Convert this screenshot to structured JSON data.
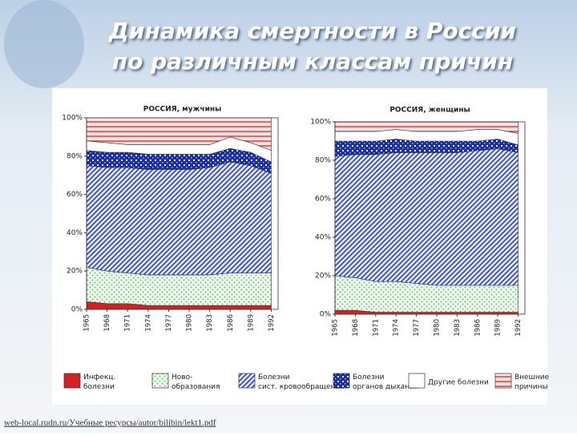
{
  "title": "Динамика смертности в России по различным классам причин",
  "source": "web-local.rudn.ru/Учебные ресурсы/autor/bilibin/lekt1.pdf",
  "chart_data": [
    {
      "type": "stacked-area",
      "title": "РОССИЯ, мужчины",
      "x": [
        1965,
        1968,
        1971,
        1974,
        1977,
        1980,
        1983,
        1986,
        1989,
        1992
      ],
      "xlim": [
        1965,
        1993
      ],
      "xticks": [
        1965,
        1968,
        1971,
        1974,
        1977,
        1980,
        1983,
        1986,
        1989,
        1992
      ],
      "ylim": [
        0,
        100
      ],
      "yticks": [
        {
          "value": 0,
          "label": "0%"
        },
        {
          "value": 20,
          "label": "20%"
        },
        {
          "value": 40,
          "label": "40%"
        },
        {
          "value": 60,
          "label": "60%"
        },
        {
          "value": 80,
          "label": "80%"
        },
        {
          "value": 100,
          "label": "100%"
        }
      ],
      "series": [
        {
          "name": "Инфекц. болезни",
          "color": "#d42020",
          "values": [
            4,
            3,
            3,
            2,
            2,
            2,
            2,
            2,
            2,
            2
          ]
        },
        {
          "name": "Ново- образования",
          "color": "#6cc070",
          "values": [
            18,
            17,
            16,
            16,
            16,
            16,
            16,
            17,
            17,
            17
          ]
        },
        {
          "name": "Болезни сист. кровообращения",
          "color": "#2b3fc8",
          "values": [
            53,
            54,
            55,
            55,
            55,
            55,
            56,
            58,
            56,
            52
          ]
        },
        {
          "name": "Болезни органов дыхания",
          "color": "#1a2ea8",
          "values": [
            8,
            8,
            8,
            8,
            8,
            8,
            7,
            7,
            7,
            6
          ]
        },
        {
          "name": "Другие болезни",
          "color": "#ffffff",
          "values": [
            5,
            5,
            4,
            5,
            5,
            5,
            5,
            6,
            5,
            6
          ]
        },
        {
          "name": "Внешние причины",
          "color": "#e03030",
          "values": [
            12,
            13,
            14,
            14,
            14,
            14,
            14,
            10,
            13,
            17
          ]
        }
      ]
    },
    {
      "type": "stacked-area",
      "title": "РОССИЯ, женщины",
      "x": [
        1965,
        1968,
        1971,
        1974,
        1977,
        1980,
        1983,
        1986,
        1989,
        1992
      ],
      "xlim": [
        1965,
        1993
      ],
      "xticks": [
        1965,
        1968,
        1971,
        1974,
        1977,
        1980,
        1983,
        1986,
        1989,
        1992
      ],
      "ylim": [
        0,
        100
      ],
      "yticks": [
        {
          "value": 0,
          "label": "0%"
        },
        {
          "value": 20,
          "label": "20%"
        },
        {
          "value": 40,
          "label": "40%"
        },
        {
          "value": 60,
          "label": "60%"
        },
        {
          "value": 80,
          "label": "80%"
        },
        {
          "value": 100,
          "label": "100%"
        }
      ],
      "series": [
        {
          "color": "#d42020",
          "values": [
            2,
            2,
            1,
            1,
            1,
            1,
            1,
            1,
            1,
            1
          ]
        },
        {
          "color": "#6cc070",
          "values": [
            18,
            17,
            16,
            16,
            15,
            14,
            14,
            14,
            14,
            14
          ]
        },
        {
          "color": "#2b3fc8",
          "values": [
            62,
            64,
            66,
            67,
            68,
            69,
            69,
            70,
            71,
            69
          ]
        },
        {
          "color": "#1a2ea8",
          "values": [
            8,
            7,
            7,
            7,
            6,
            6,
            6,
            5,
            5,
            4
          ]
        },
        {
          "color": "#ffffff",
          "values": [
            5,
            5,
            5,
            5,
            5,
            5,
            5,
            6,
            5,
            6
          ]
        },
        {
          "color": "#e03030",
          "values": [
            5,
            5,
            5,
            4,
            5,
            5,
            5,
            4,
            4,
            6
          ]
        }
      ]
    }
  ]
}
